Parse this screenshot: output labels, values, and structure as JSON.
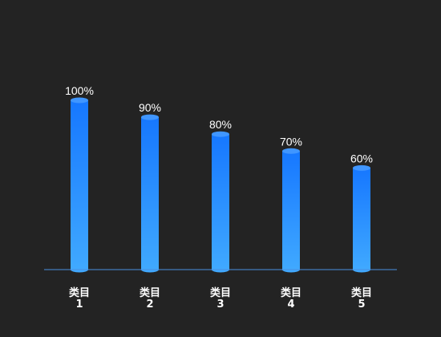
{
  "chart_data": {
    "type": "bar",
    "categories": [
      "类目\n1",
      "类目\n2",
      "类目\n3",
      "类目\n4",
      "类目\n5"
    ],
    "values": [
      100,
      90,
      80,
      70,
      60
    ],
    "value_labels": [
      "100%",
      "90%",
      "80%",
      "70%",
      "60%"
    ],
    "title": "",
    "xlabel": "",
    "ylabel": "",
    "ylim": [
      0,
      100
    ],
    "grid": false,
    "legend": "none",
    "bar_style": "cylinder",
    "colors": {
      "background": "#232323",
      "bar_top": "#1677ff",
      "bar_bottom": "#40a9ff",
      "cap": "#4096ff",
      "axis": "#4a90e2",
      "label": "#ffffff"
    }
  }
}
